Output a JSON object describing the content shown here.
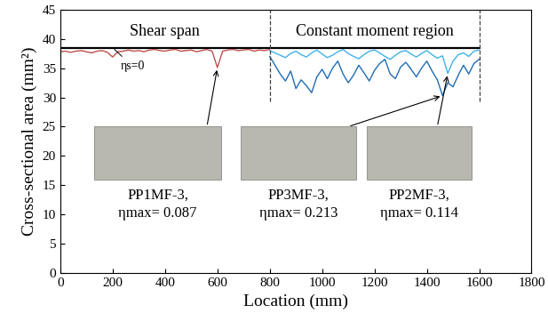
{
  "chart_data": {
    "type": "line",
    "xlabel": "Location (mm)",
    "ylabel": "Cross-sectional area (mm²)",
    "xlim": [
      0,
      1800
    ],
    "xticks": [
      0,
      200,
      400,
      600,
      800,
      1000,
      1200,
      1400,
      1600,
      1800
    ],
    "ylim": [
      0,
      45
    ],
    "yticks": [
      0,
      5,
      10,
      15,
      20,
      25,
      30,
      35,
      40,
      45
    ],
    "grid": false,
    "vlines": [
      800,
      1600
    ],
    "region_labels": [
      "Shear span",
      "Constant moment region"
    ],
    "series": [
      {
        "color": "#000000",
        "line_style": "solid",
        "x": [
          0,
          1600
        ],
        "values": [
          38.5,
          38.5
        ]
      },
      {
        "color": "#c0504d",
        "line_style": "solid",
        "x": [
          0,
          20,
          40,
          60,
          80,
          100,
          120,
          140,
          160,
          180,
          200,
          220,
          240,
          260,
          280,
          300,
          320,
          340,
          360,
          380,
          400,
          420,
          440,
          460,
          480,
          500,
          520,
          540,
          560,
          580,
          600,
          620,
          640,
          660,
          680,
          700,
          720,
          740,
          760,
          780,
          800
        ],
        "values": [
          37.8,
          37.9,
          37.7,
          37.9,
          38.0,
          37.8,
          37.6,
          37.9,
          38.0,
          37.7,
          36.9,
          37.8,
          37.9,
          38.1,
          37.9,
          38.0,
          37.8,
          38.1,
          38.2,
          38.0,
          37.9,
          38.1,
          38.2,
          37.9,
          38.0,
          38.1,
          37.8,
          38.0,
          38.2,
          37.9,
          35.1,
          37.9,
          38.1,
          38.2,
          38.0,
          38.1,
          38.2,
          37.9,
          38.1,
          38.0,
          38.2
        ]
      },
      {
        "color": "#3fb2e6",
        "line_style": "solid",
        "x": [
          800,
          820,
          840,
          860,
          880,
          900,
          920,
          940,
          960,
          980,
          1000,
          1020,
          1040,
          1060,
          1080,
          1100,
          1120,
          1140,
          1160,
          1180,
          1200,
          1220,
          1240,
          1260,
          1280,
          1300,
          1320,
          1340,
          1360,
          1380,
          1400,
          1420,
          1440,
          1460,
          1480,
          1500,
          1520,
          1540,
          1560,
          1580,
          1600
        ],
        "values": [
          38.0,
          37.6,
          37.2,
          36.8,
          37.5,
          37.9,
          37.3,
          36.9,
          37.6,
          38.1,
          37.4,
          36.8,
          37.2,
          37.8,
          38.2,
          37.5,
          37.0,
          36.6,
          37.3,
          37.9,
          38.1,
          37.6,
          37.0,
          36.5,
          37.2,
          37.8,
          38.0,
          37.4,
          36.9,
          37.5,
          38.0,
          37.3,
          36.7,
          37.1,
          34.1,
          36.2,
          37.3,
          37.6,
          37.0,
          37.9,
          38.1
        ]
      },
      {
        "color": "#1f6db4",
        "line_style": "solid",
        "x": [
          800,
          820,
          840,
          860,
          880,
          900,
          920,
          940,
          960,
          980,
          1000,
          1020,
          1040,
          1060,
          1080,
          1100,
          1120,
          1140,
          1160,
          1180,
          1200,
          1220,
          1240,
          1260,
          1280,
          1300,
          1320,
          1340,
          1360,
          1380,
          1400,
          1420,
          1440,
          1460,
          1480,
          1500,
          1520,
          1540,
          1560,
          1580,
          1600
        ],
        "values": [
          37.0,
          35.5,
          34.0,
          32.8,
          34.5,
          31.5,
          33.0,
          32.0,
          30.8,
          33.5,
          34.8,
          33.2,
          35.0,
          36.2,
          34.0,
          32.5,
          33.8,
          35.5,
          34.2,
          32.8,
          34.6,
          35.8,
          36.5,
          34.0,
          33.2,
          35.2,
          36.0,
          34.8,
          33.5,
          35.0,
          36.2,
          34.5,
          33.0,
          30.3,
          32.5,
          31.8,
          33.8,
          35.5,
          34.0,
          35.8,
          36.5
        ]
      }
    ],
    "annotations": [
      {
        "text": "ηs=0",
        "x": 200,
        "y": 38.5
      },
      {
        "text": "PP1MF-3,\nηmax= 0.087",
        "x": 600,
        "y": 35.1
      },
      {
        "text": "PP3MF-3,\nηmax= 0.213",
        "x": 1460,
        "y": 30.3
      },
      {
        "text": "PP2MF-3,\nηmax= 0.114",
        "x": 1480,
        "y": 34.1
      }
    ]
  }
}
